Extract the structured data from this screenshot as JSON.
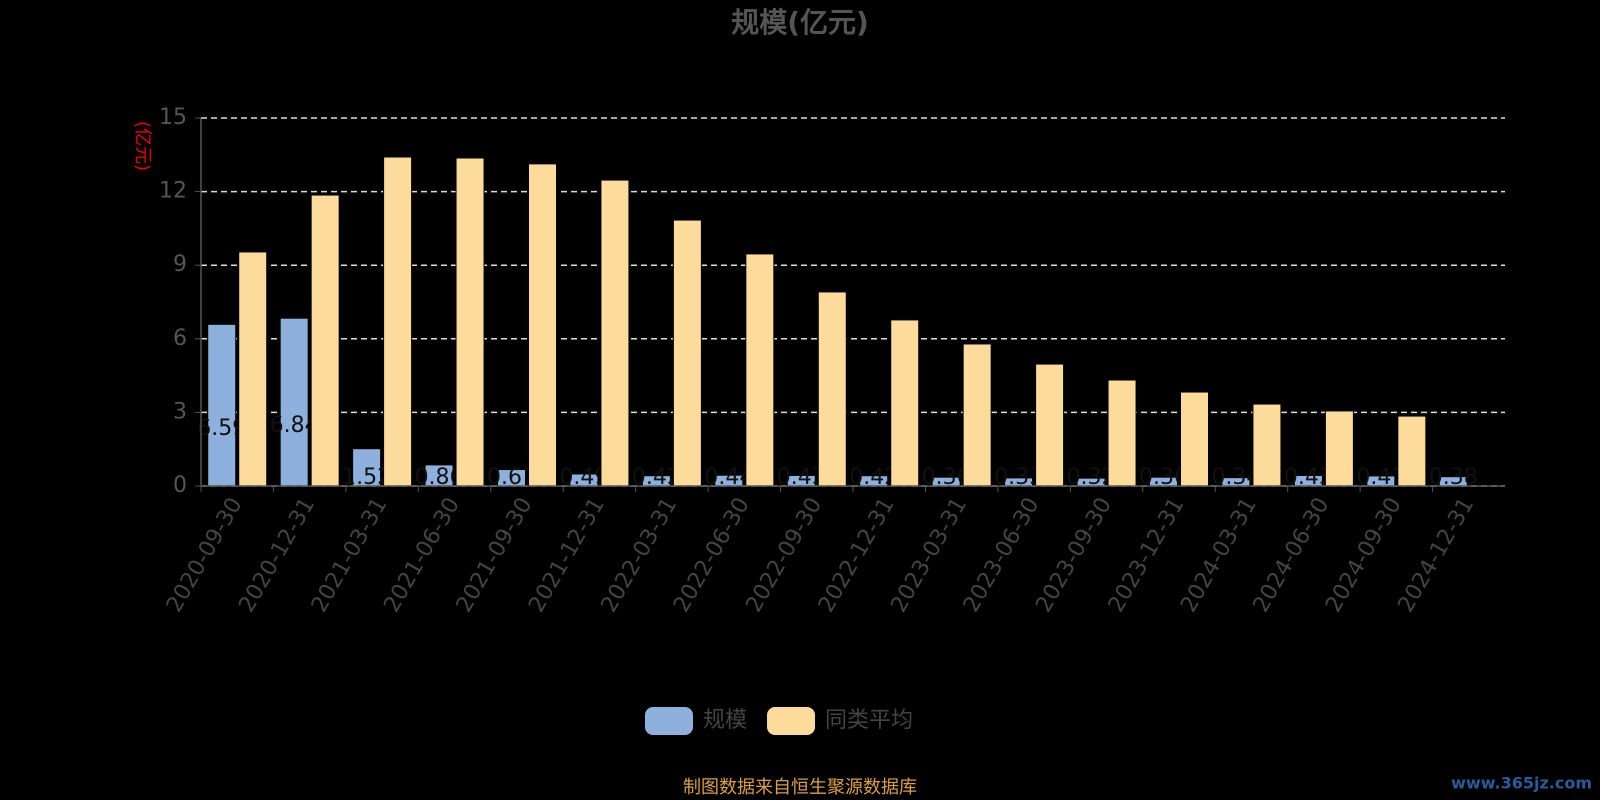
{
  "chart_data": {
    "type": "bar",
    "title": "规模(亿元)",
    "y_label": "(亿元)",
    "categories": [
      "2020-09-30",
      "2020-12-31",
      "2021-03-31",
      "2021-06-30",
      "2021-09-30",
      "2021-12-31",
      "2022-03-31",
      "2022-06-30",
      "2022-09-30",
      "2022-12-31",
      "2023-03-31",
      "2023-06-30",
      "2023-09-30",
      "2023-12-31",
      "2024-03-31",
      "2024-06-30",
      "2024-09-30",
      "2024-12-31"
    ],
    "series": [
      {
        "name": "规模",
        "color": "#8eb0dc",
        "values": [
          6.59,
          6.84,
          1.52,
          0.86,
          0.67,
          0.49,
          0.42,
          0.44,
          0.43,
          0.42,
          0.36,
          0.33,
          0.32,
          0.36,
          0.34,
          0.43,
          0.41,
          0.38
        ]
      },
      {
        "name": "同类平均",
        "color": "#fddb9a",
        "values": [
          9.54,
          11.86,
          13.41,
          13.37,
          13.13,
          12.47,
          10.84,
          9.46,
          7.91,
          6.77,
          5.79,
          4.97,
          4.32,
          3.83,
          3.34,
          3.06,
          2.85,
          null
        ]
      }
    ],
    "ylim": [
      0,
      15
    ],
    "yticks": [
      0,
      3,
      6,
      9,
      12,
      15
    ],
    "grid": true,
    "source": "制图数据来自恒生聚源数据库",
    "watermark": "www.365jz.com"
  }
}
